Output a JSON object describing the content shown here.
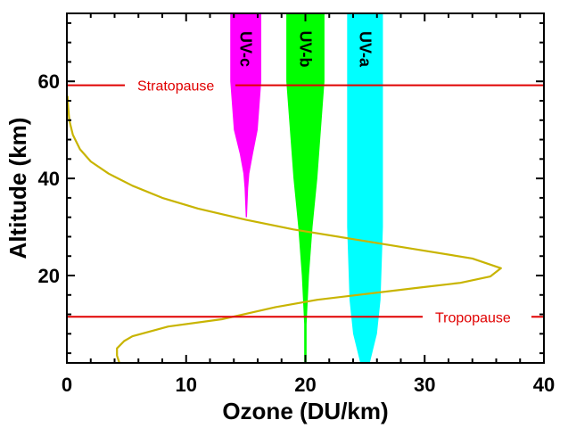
{
  "chart_data": {
    "type": "line",
    "xlabel": "Ozone (DU/km)",
    "ylabel": "Altitude (km)",
    "xlim": [
      0,
      40
    ],
    "ylim": [
      2,
      74
    ],
    "x_ticks": [
      0,
      10,
      20,
      30,
      40
    ],
    "y_ticks": [
      20,
      40,
      60
    ],
    "grid": false,
    "series": [
      {
        "color": "#c8b400",
        "points": [
          [
            4.4,
            2.0
          ],
          [
            4.2,
            3.5
          ],
          [
            4.2,
            5.0
          ],
          [
            4.8,
            6.5
          ],
          [
            5.5,
            7.5
          ],
          [
            8.5,
            9.5
          ],
          [
            13.0,
            11.0
          ],
          [
            17.5,
            13.5
          ],
          [
            21.0,
            15.0
          ],
          [
            29.5,
            17.5
          ],
          [
            33.0,
            18.5
          ],
          [
            35.5,
            19.8
          ],
          [
            36.4,
            21.5
          ],
          [
            34.0,
            23.5
          ],
          [
            29.0,
            25.5
          ],
          [
            24.0,
            27.5
          ],
          [
            19.0,
            29.5
          ],
          [
            15.0,
            31.5
          ],
          [
            11.0,
            33.8
          ],
          [
            8.0,
            36.0
          ],
          [
            5.5,
            38.5
          ],
          [
            3.5,
            41.0
          ],
          [
            2.0,
            43.5
          ],
          [
            1.1,
            46.0
          ],
          [
            0.5,
            49.0
          ],
          [
            0.2,
            52.0
          ],
          [
            0.1,
            55.0
          ],
          [
            0.05,
            57.0
          ]
        ]
      }
    ],
    "reference_lines": [
      {
        "label": "Stratopause",
        "y": 59.2,
        "color": "#e00000"
      },
      {
        "label": "Tropopause",
        "y": 11.5,
        "color": "#e00000"
      }
    ],
    "bands": [
      {
        "label": "UV-c",
        "color": "#ff00ff",
        "right": [
          [
            16.3,
            74
          ],
          [
            16.3,
            60
          ],
          [
            16.0,
            50
          ],
          [
            15.6,
            45
          ],
          [
            15.3,
            41
          ],
          [
            15.2,
            38
          ],
          [
            15.1,
            32
          ]
        ],
        "left": [
          [
            13.7,
            74
          ],
          [
            13.7,
            60
          ],
          [
            14.0,
            50
          ],
          [
            14.5,
            45
          ],
          [
            14.8,
            41
          ],
          [
            14.9,
            38
          ],
          [
            15.0,
            32
          ]
        ]
      },
      {
        "label": "UV-b",
        "color": "#00ff00",
        "right": [
          [
            21.6,
            74
          ],
          [
            21.6,
            60
          ],
          [
            21.3,
            50
          ],
          [
            21.0,
            40
          ],
          [
            20.6,
            30
          ],
          [
            20.3,
            20
          ],
          [
            20.1,
            10
          ],
          [
            20.1,
            2
          ]
        ],
        "left": [
          [
            18.4,
            74
          ],
          [
            18.4,
            60
          ],
          [
            18.7,
            50
          ],
          [
            19.0,
            40
          ],
          [
            19.4,
            30
          ],
          [
            19.7,
            20
          ],
          [
            19.9,
            10
          ],
          [
            19.9,
            2
          ]
        ]
      },
      {
        "label": "UV-a",
        "color": "#00ffff",
        "right": [
          [
            26.5,
            74
          ],
          [
            26.5,
            30
          ],
          [
            26.3,
            15
          ],
          [
            26.0,
            8
          ],
          [
            25.6,
            4
          ],
          [
            25.4,
            2
          ]
        ],
        "left": [
          [
            23.5,
            74
          ],
          [
            23.5,
            30
          ],
          [
            23.7,
            15
          ],
          [
            24.0,
            8
          ],
          [
            24.4,
            4
          ],
          [
            24.6,
            2
          ]
        ]
      }
    ]
  }
}
